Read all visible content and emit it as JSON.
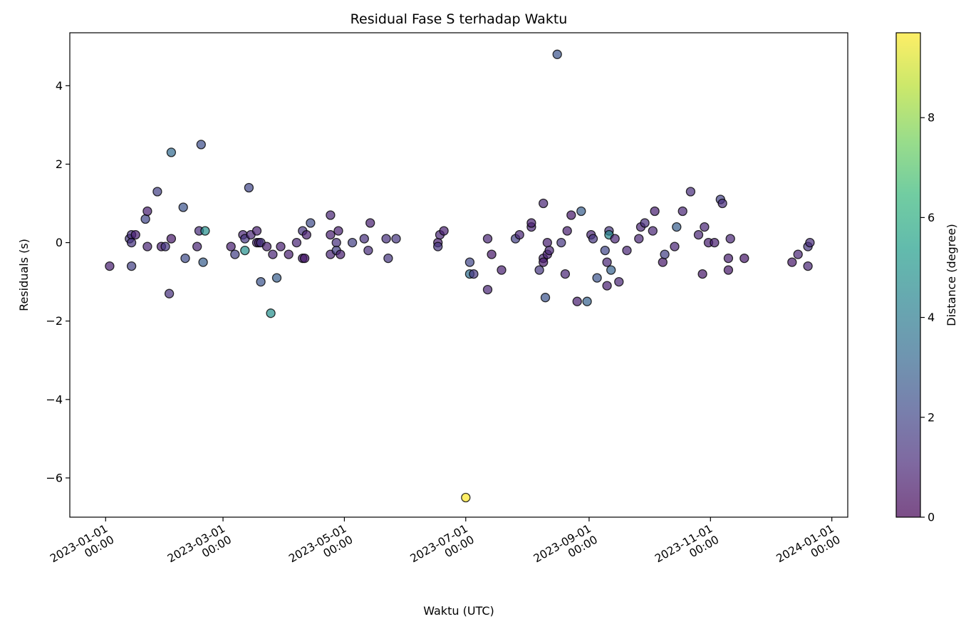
{
  "chart_data": {
    "type": "scatter",
    "title": "Residual Fase S terhadap Waktu",
    "xlabel": "Waktu (UTC)",
    "ylabel": "Residuals (s)",
    "colorbar_label": "Distance (degree)",
    "colormap": "viridis",
    "point_alpha": 0.7,
    "point_edgecolor": "#000000",
    "grid": false,
    "xlim": [
      "2022-12-14",
      "2024-01-09"
    ],
    "ylim": [
      -7.0,
      5.35
    ],
    "clim": [
      0,
      9.7
    ],
    "x_ticks": [
      {
        "date": "2023-01-01",
        "line1": "2023-01-01",
        "line2": "00:00"
      },
      {
        "date": "2023-03-01",
        "line1": "2023-03-01",
        "line2": "00:00"
      },
      {
        "date": "2023-05-01",
        "line1": "2023-05-01",
        "line2": "00:00"
      },
      {
        "date": "2023-07-01",
        "line1": "2023-07-01",
        "line2": "00:00"
      },
      {
        "date": "2023-09-01",
        "line1": "2023-09-01",
        "line2": "00:00"
      },
      {
        "date": "2023-11-01",
        "line1": "2023-11-01",
        "line2": "00:00"
      },
      {
        "date": "2024-01-01",
        "line1": "2024-01-01",
        "line2": "00:00"
      }
    ],
    "y_ticks": [
      {
        "value": 4,
        "label": "4"
      },
      {
        "value": 2,
        "label": "2"
      },
      {
        "value": 0,
        "label": "0"
      },
      {
        "value": -2,
        "label": "−2"
      },
      {
        "value": -4,
        "label": "−4"
      },
      {
        "value": -6,
        "label": "−6"
      }
    ],
    "colorbar_ticks": [
      {
        "value": 0,
        "label": "0"
      },
      {
        "value": 2,
        "label": "2"
      },
      {
        "value": 4,
        "label": "4"
      },
      {
        "value": 6,
        "label": "6"
      },
      {
        "value": 8,
        "label": "8"
      }
    ],
    "points": [
      {
        "x": "2023-01-03",
        "y": -0.6,
        "c": 0.8
      },
      {
        "x": "2023-01-13",
        "y": 0.1,
        "c": 1.5
      },
      {
        "x": "2023-01-14",
        "y": 0.2,
        "c": 1.3
      },
      {
        "x": "2023-01-14",
        "y": 0.0,
        "c": 1.4
      },
      {
        "x": "2023-01-14",
        "y": -0.6,
        "c": 1.8
      },
      {
        "x": "2023-01-16",
        "y": 0.2,
        "c": 0.8
      },
      {
        "x": "2023-01-21",
        "y": 0.6,
        "c": 2.0
      },
      {
        "x": "2023-01-22",
        "y": 0.8,
        "c": 0.8
      },
      {
        "x": "2023-01-22",
        "y": -0.1,
        "c": 1.0
      },
      {
        "x": "2023-01-27",
        "y": 1.3,
        "c": 1.8
      },
      {
        "x": "2023-01-29",
        "y": -0.1,
        "c": 0.8
      },
      {
        "x": "2023-01-31",
        "y": -0.1,
        "c": 1.5
      },
      {
        "x": "2023-02-02",
        "y": -1.3,
        "c": 1.3
      },
      {
        "x": "2023-02-03",
        "y": 0.1,
        "c": 0.6
      },
      {
        "x": "2023-02-03",
        "y": 2.3,
        "c": 3.3
      },
      {
        "x": "2023-02-09",
        "y": 0.9,
        "c": 2.5
      },
      {
        "x": "2023-02-10",
        "y": -0.4,
        "c": 2.2
      },
      {
        "x": "2023-02-16",
        "y": -0.1,
        "c": 1.0
      },
      {
        "x": "2023-02-17",
        "y": 0.3,
        "c": 1.2
      },
      {
        "x": "2023-02-18",
        "y": 2.5,
        "c": 2.3
      },
      {
        "x": "2023-02-19",
        "y": -0.5,
        "c": 2.8
      },
      {
        "x": "2023-02-20",
        "y": 0.3,
        "c": 4.8
      },
      {
        "x": "2023-03-05",
        "y": -0.1,
        "c": 0.8
      },
      {
        "x": "2023-03-07",
        "y": -0.3,
        "c": 1.8
      },
      {
        "x": "2023-03-11",
        "y": 0.2,
        "c": 1.0
      },
      {
        "x": "2023-03-12",
        "y": 0.1,
        "c": 1.5
      },
      {
        "x": "2023-03-12",
        "y": -0.2,
        "c": 4.8
      },
      {
        "x": "2023-03-14",
        "y": 1.4,
        "c": 2.0
      },
      {
        "x": "2023-03-15",
        "y": 0.2,
        "c": 1.0
      },
      {
        "x": "2023-03-18",
        "y": 0.3,
        "c": 0.8
      },
      {
        "x": "2023-03-18",
        "y": 0.0,
        "c": 1.2
      },
      {
        "x": "2023-03-19",
        "y": 0.0,
        "c": 0.6
      },
      {
        "x": "2023-03-20",
        "y": -1.0,
        "c": 2.5
      },
      {
        "x": "2023-03-20",
        "y": 0.0,
        "c": 1.5
      },
      {
        "x": "2023-03-23",
        "y": -0.1,
        "c": 0.8
      },
      {
        "x": "2023-03-25",
        "y": -1.8,
        "c": 4.8
      },
      {
        "x": "2023-03-26",
        "y": -0.3,
        "c": 1.0
      },
      {
        "x": "2023-03-28",
        "y": -0.9,
        "c": 2.8
      },
      {
        "x": "2023-03-30",
        "y": -0.1,
        "c": 0.8
      },
      {
        "x": "2023-04-03",
        "y": -0.3,
        "c": 0.8
      },
      {
        "x": "2023-04-07",
        "y": 0.0,
        "c": 1.0
      },
      {
        "x": "2023-04-10",
        "y": -0.4,
        "c": 1.0
      },
      {
        "x": "2023-04-10",
        "y": 0.3,
        "c": 1.5
      },
      {
        "x": "2023-04-11",
        "y": -0.4,
        "c": 0.6
      },
      {
        "x": "2023-04-12",
        "y": 0.2,
        "c": 0.8
      },
      {
        "x": "2023-04-14",
        "y": 0.5,
        "c": 2.2
      },
      {
        "x": "2023-04-24",
        "y": -0.3,
        "c": 1.0
      },
      {
        "x": "2023-04-24",
        "y": 0.2,
        "c": 0.8
      },
      {
        "x": "2023-04-24",
        "y": 0.7,
        "c": 1.0
      },
      {
        "x": "2023-04-27",
        "y": 0.0,
        "c": 1.3
      },
      {
        "x": "2023-04-27",
        "y": -0.2,
        "c": 1.8
      },
      {
        "x": "2023-04-28",
        "y": 0.3,
        "c": 0.8
      },
      {
        "x": "2023-04-29",
        "y": -0.3,
        "c": 0.8
      },
      {
        "x": "2023-05-05",
        "y": 0.0,
        "c": 1.8
      },
      {
        "x": "2023-05-11",
        "y": 0.1,
        "c": 1.3
      },
      {
        "x": "2023-05-13",
        "y": -0.2,
        "c": 1.2
      },
      {
        "x": "2023-05-14",
        "y": 0.5,
        "c": 0.8
      },
      {
        "x": "2023-05-22",
        "y": 0.1,
        "c": 1.3
      },
      {
        "x": "2023-05-23",
        "y": -0.4,
        "c": 1.5
      },
      {
        "x": "2023-05-27",
        "y": 0.1,
        "c": 1.5
      },
      {
        "x": "2023-06-17",
        "y": 0.0,
        "c": 0.8
      },
      {
        "x": "2023-06-17",
        "y": -0.1,
        "c": 1.5
      },
      {
        "x": "2023-06-18",
        "y": 0.2,
        "c": 1.0
      },
      {
        "x": "2023-06-20",
        "y": 0.3,
        "c": 0.8
      },
      {
        "x": "2023-07-01",
        "y": -6.5,
        "c": 9.7
      },
      {
        "x": "2023-07-03",
        "y": -0.5,
        "c": 2.0
      },
      {
        "x": "2023-07-03",
        "y": -0.8,
        "c": 3.5
      },
      {
        "x": "2023-07-05",
        "y": -0.8,
        "c": 1.5
      },
      {
        "x": "2023-07-12",
        "y": -1.2,
        "c": 1.0
      },
      {
        "x": "2023-07-12",
        "y": 0.1,
        "c": 1.0
      },
      {
        "x": "2023-07-14",
        "y": -0.3,
        "c": 0.6
      },
      {
        "x": "2023-07-19",
        "y": -0.7,
        "c": 0.8
      },
      {
        "x": "2023-07-26",
        "y": 0.1,
        "c": 1.8
      },
      {
        "x": "2023-07-28",
        "y": 0.2,
        "c": 1.0
      },
      {
        "x": "2023-08-03",
        "y": 0.4,
        "c": 1.0
      },
      {
        "x": "2023-08-03",
        "y": 0.5,
        "c": 0.8
      },
      {
        "x": "2023-08-07",
        "y": -0.7,
        "c": 1.5
      },
      {
        "x": "2023-08-09",
        "y": 1.0,
        "c": 1.0
      },
      {
        "x": "2023-08-09",
        "y": -0.4,
        "c": 1.0
      },
      {
        "x": "2023-08-09",
        "y": -0.5,
        "c": 0.6
      },
      {
        "x": "2023-08-10",
        "y": -1.4,
        "c": 2.5
      },
      {
        "x": "2023-08-11",
        "y": -0.3,
        "c": 0.8
      },
      {
        "x": "2023-08-11",
        "y": 0.0,
        "c": 0.8
      },
      {
        "x": "2023-08-12",
        "y": -0.2,
        "c": 1.0
      },
      {
        "x": "2023-08-16",
        "y": 4.8,
        "c": 2.5
      },
      {
        "x": "2023-08-18",
        "y": 0.0,
        "c": 1.5
      },
      {
        "x": "2023-08-20",
        "y": -0.8,
        "c": 1.0
      },
      {
        "x": "2023-08-21",
        "y": 0.3,
        "c": 0.8
      },
      {
        "x": "2023-08-23",
        "y": 0.7,
        "c": 0.6
      },
      {
        "x": "2023-08-26",
        "y": -1.5,
        "c": 0.8
      },
      {
        "x": "2023-08-28",
        "y": 0.8,
        "c": 2.8
      },
      {
        "x": "2023-08-31",
        "y": -1.5,
        "c": 3.0
      },
      {
        "x": "2023-09-02",
        "y": 0.2,
        "c": 1.0
      },
      {
        "x": "2023-09-03",
        "y": 0.1,
        "c": 1.5
      },
      {
        "x": "2023-09-05",
        "y": -0.9,
        "c": 2.5
      },
      {
        "x": "2023-09-09",
        "y": -0.2,
        "c": 2.0
      },
      {
        "x": "2023-09-10",
        "y": -0.5,
        "c": 1.0
      },
      {
        "x": "2023-09-10",
        "y": -1.1,
        "c": 0.8
      },
      {
        "x": "2023-09-11",
        "y": 0.3,
        "c": 1.5
      },
      {
        "x": "2023-09-11",
        "y": 0.2,
        "c": 4.5
      },
      {
        "x": "2023-09-12",
        "y": -0.7,
        "c": 3.0
      },
      {
        "x": "2023-09-14",
        "y": 0.1,
        "c": 1.0
      },
      {
        "x": "2023-09-16",
        "y": -1.0,
        "c": 1.0
      },
      {
        "x": "2023-09-20",
        "y": -0.2,
        "c": 1.0
      },
      {
        "x": "2023-09-26",
        "y": 0.1,
        "c": 1.0
      },
      {
        "x": "2023-09-27",
        "y": 0.4,
        "c": 1.0
      },
      {
        "x": "2023-09-29",
        "y": 0.5,
        "c": 1.2
      },
      {
        "x": "2023-10-03",
        "y": 0.3,
        "c": 1.0
      },
      {
        "x": "2023-10-04",
        "y": 0.8,
        "c": 0.8
      },
      {
        "x": "2023-10-08",
        "y": -0.5,
        "c": 0.6
      },
      {
        "x": "2023-10-09",
        "y": -0.3,
        "c": 1.8
      },
      {
        "x": "2023-10-14",
        "y": -0.1,
        "c": 1.0
      },
      {
        "x": "2023-10-15",
        "y": 0.4,
        "c": 2.8
      },
      {
        "x": "2023-10-18",
        "y": 0.8,
        "c": 1.0
      },
      {
        "x": "2023-10-22",
        "y": 1.3,
        "c": 1.2
      },
      {
        "x": "2023-10-26",
        "y": 0.2,
        "c": 1.0
      },
      {
        "x": "2023-10-28",
        "y": -0.8,
        "c": 0.6
      },
      {
        "x": "2023-10-29",
        "y": 0.4,
        "c": 1.0
      },
      {
        "x": "2023-10-31",
        "y": 0.0,
        "c": 0.8
      },
      {
        "x": "2023-11-03",
        "y": 0.0,
        "c": 0.8
      },
      {
        "x": "2023-11-06",
        "y": 1.1,
        "c": 1.8
      },
      {
        "x": "2023-11-07",
        "y": 1.0,
        "c": 1.2
      },
      {
        "x": "2023-11-10",
        "y": -0.4,
        "c": 0.8
      },
      {
        "x": "2023-11-10",
        "y": -0.7,
        "c": 0.6
      },
      {
        "x": "2023-11-11",
        "y": 0.1,
        "c": 1.0
      },
      {
        "x": "2023-11-18",
        "y": -0.4,
        "c": 0.6
      },
      {
        "x": "2023-12-12",
        "y": -0.5,
        "c": 0.6
      },
      {
        "x": "2023-12-15",
        "y": -0.3,
        "c": 1.0
      },
      {
        "x": "2023-12-20",
        "y": -0.6,
        "c": 1.0
      },
      {
        "x": "2023-12-20",
        "y": -0.1,
        "c": 1.5
      },
      {
        "x": "2023-12-21",
        "y": 0.0,
        "c": 1.2
      }
    ]
  }
}
